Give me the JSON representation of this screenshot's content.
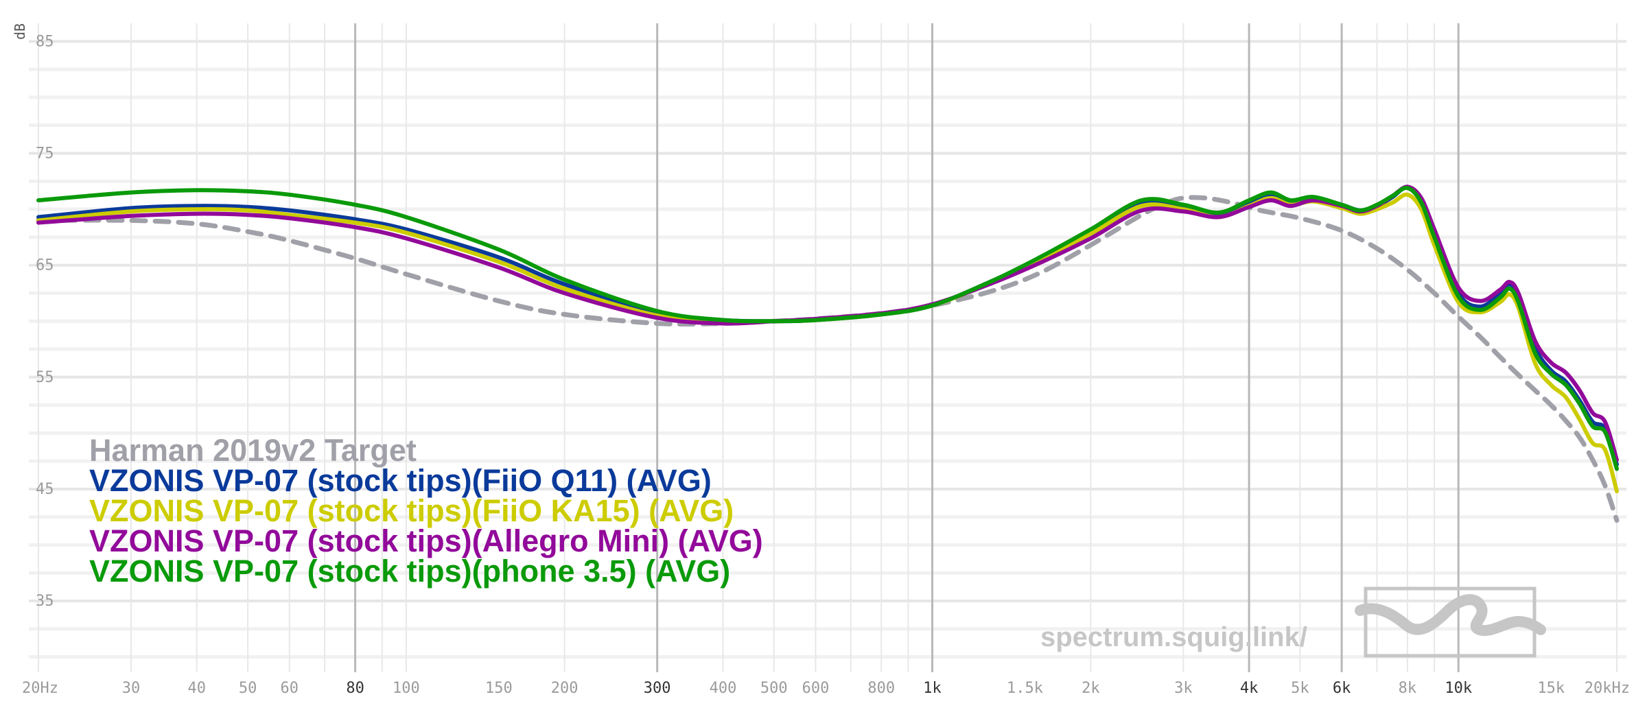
{
  "chart_data": {
    "type": "line",
    "title": "",
    "ylabel": "dB",
    "xlabel": "",
    "xscale": "log",
    "xlim": [
      20,
      20000
    ],
    "ylim": [
      29,
      86
    ],
    "y_ticks": [
      35,
      45,
      55,
      65,
      75,
      85
    ],
    "x_ticks": [
      {
        "f": 20,
        "label": "20Hz",
        "major": false
      },
      {
        "f": 30,
        "label": "30",
        "major": false
      },
      {
        "f": 40,
        "label": "40",
        "major": false
      },
      {
        "f": 50,
        "label": "50",
        "major": false
      },
      {
        "f": 60,
        "label": "60",
        "major": false
      },
      {
        "f": 80,
        "label": "80",
        "major": true
      },
      {
        "f": 100,
        "label": "100",
        "major": false
      },
      {
        "f": 150,
        "label": "150",
        "major": false
      },
      {
        "f": 200,
        "label": "200",
        "major": false
      },
      {
        "f": 300,
        "label": "300",
        "major": true
      },
      {
        "f": 400,
        "label": "400",
        "major": false
      },
      {
        "f": 500,
        "label": "500",
        "major": false
      },
      {
        "f": 600,
        "label": "600",
        "major": false
      },
      {
        "f": 800,
        "label": "800",
        "major": false
      },
      {
        "f": 1000,
        "label": "1k",
        "major": true
      },
      {
        "f": 1500,
        "label": "1.5k",
        "major": false
      },
      {
        "f": 2000,
        "label": "2k",
        "major": false
      },
      {
        "f": 3000,
        "label": "3k",
        "major": false
      },
      {
        "f": 4000,
        "label": "4k",
        "major": true
      },
      {
        "f": 5000,
        "label": "5k",
        "major": false
      },
      {
        "f": 6000,
        "label": "6k",
        "major": true
      },
      {
        "f": 8000,
        "label": "8k",
        "major": false
      },
      {
        "f": 10000,
        "label": "10k",
        "major": true
      },
      {
        "f": 15000,
        "label": "15k",
        "major": false
      },
      {
        "f": 20000,
        "label": "20kHz",
        "major": false
      }
    ],
    "series": [
      {
        "name": "Harman 2019v2 Target",
        "color": "#a0a0a8",
        "dashed": true,
        "points": [
          [
            20,
            69.0
          ],
          [
            30,
            69.0
          ],
          [
            40,
            68.7
          ],
          [
            50,
            68.0
          ],
          [
            60,
            67.2
          ],
          [
            80,
            65.6
          ],
          [
            100,
            64.2
          ],
          [
            150,
            61.8
          ],
          [
            200,
            60.6
          ],
          [
            300,
            59.8
          ],
          [
            400,
            59.8
          ],
          [
            500,
            60.0
          ],
          [
            600,
            60.2
          ],
          [
            800,
            60.7
          ],
          [
            1000,
            61.4
          ],
          [
            1300,
            62.7
          ],
          [
            1600,
            64.3
          ],
          [
            2000,
            66.8
          ],
          [
            2500,
            69.5
          ],
          [
            2800,
            70.6
          ],
          [
            3000,
            71.0
          ],
          [
            3300,
            71.0
          ],
          [
            3700,
            70.6
          ],
          [
            4200,
            69.9
          ],
          [
            5000,
            69.2
          ],
          [
            6000,
            68.1
          ],
          [
            7000,
            66.5
          ],
          [
            8000,
            64.6
          ],
          [
            9000,
            62.5
          ],
          [
            10000,
            60.4
          ],
          [
            11000,
            58.6
          ],
          [
            12000,
            56.8
          ],
          [
            13000,
            55.2
          ],
          [
            14000,
            53.8
          ],
          [
            15000,
            52.5
          ],
          [
            16000,
            51.1
          ],
          [
            17000,
            49.6
          ],
          [
            18000,
            47.6
          ],
          [
            19000,
            45.3
          ],
          [
            20000,
            42.2
          ]
        ]
      },
      {
        "name": "VZONIS VP-07 (stock tips)(FiiO Q11) (AVG)",
        "color": "#0a3a9a",
        "dashed": false,
        "points": [
          [
            20,
            69.3
          ],
          [
            30,
            70.1
          ],
          [
            40,
            70.3
          ],
          [
            50,
            70.2
          ],
          [
            60,
            69.9
          ],
          [
            80,
            69.1
          ],
          [
            100,
            68.2
          ],
          [
            150,
            65.7
          ],
          [
            200,
            63.3
          ],
          [
            300,
            60.8
          ],
          [
            400,
            60.1
          ],
          [
            500,
            60.0
          ],
          [
            600,
            60.1
          ],
          [
            800,
            60.6
          ],
          [
            1000,
            61.4
          ],
          [
            1300,
            63.6
          ],
          [
            1600,
            65.6
          ],
          [
            2000,
            68.0
          ],
          [
            2500,
            70.5
          ],
          [
            3000,
            70.2
          ],
          [
            3500,
            69.5
          ],
          [
            4000,
            70.5
          ],
          [
            4400,
            71.2
          ],
          [
            4800,
            70.6
          ],
          [
            5300,
            71.0
          ],
          [
            6000,
            70.4
          ],
          [
            6500,
            69.9
          ],
          [
            7000,
            70.3
          ],
          [
            7500,
            71.1
          ],
          [
            8000,
            72.0
          ],
          [
            8500,
            70.8
          ],
          [
            9000,
            67.9
          ],
          [
            10000,
            62.5
          ],
          [
            11000,
            61.3
          ],
          [
            12000,
            62.5
          ],
          [
            12500,
            63.3
          ],
          [
            13000,
            62.2
          ],
          [
            14000,
            57.6
          ],
          [
            15000,
            55.6
          ],
          [
            16000,
            54.6
          ],
          [
            17000,
            52.9
          ],
          [
            18000,
            51.0
          ],
          [
            19000,
            50.4
          ],
          [
            20000,
            47.2
          ]
        ]
      },
      {
        "name": "VZONIS VP-07 (stock tips)(FiiO KA15) (AVG)",
        "color": "#cccc00",
        "dashed": false,
        "points": [
          [
            20,
            69.0
          ],
          [
            30,
            69.8
          ],
          [
            40,
            70.0
          ],
          [
            50,
            69.9
          ],
          [
            60,
            69.5
          ],
          [
            80,
            68.8
          ],
          [
            100,
            67.9
          ],
          [
            150,
            65.3
          ],
          [
            200,
            62.9
          ],
          [
            300,
            60.5
          ],
          [
            400,
            59.9
          ],
          [
            500,
            60.0
          ],
          [
            600,
            60.1
          ],
          [
            800,
            60.6
          ],
          [
            1000,
            61.4
          ],
          [
            1300,
            63.5
          ],
          [
            1600,
            65.5
          ],
          [
            2000,
            67.8
          ],
          [
            2500,
            70.3
          ],
          [
            3000,
            70.0
          ],
          [
            3500,
            69.3
          ],
          [
            4000,
            70.3
          ],
          [
            4400,
            71.0
          ],
          [
            4800,
            70.4
          ],
          [
            5300,
            70.7
          ],
          [
            6000,
            70.1
          ],
          [
            6500,
            69.6
          ],
          [
            7000,
            70.0
          ],
          [
            7500,
            70.6
          ],
          [
            8000,
            71.3
          ],
          [
            8500,
            70.0
          ],
          [
            9000,
            66.8
          ],
          [
            10000,
            61.7
          ],
          [
            11000,
            60.8
          ],
          [
            12000,
            61.7
          ],
          [
            12500,
            62.4
          ],
          [
            13000,
            61.2
          ],
          [
            14000,
            56.2
          ],
          [
            15000,
            54.3
          ],
          [
            16000,
            53.2
          ],
          [
            17000,
            51.2
          ],
          [
            18000,
            49.1
          ],
          [
            19000,
            48.5
          ],
          [
            20000,
            44.8
          ]
        ]
      },
      {
        "name": "VZONIS VP-07 (stock tips)(Allegro Mini) (AVG)",
        "color": "#920a9a",
        "dashed": false,
        "points": [
          [
            20,
            68.8
          ],
          [
            30,
            69.4
          ],
          [
            40,
            69.6
          ],
          [
            50,
            69.5
          ],
          [
            60,
            69.2
          ],
          [
            80,
            68.4
          ],
          [
            100,
            67.4
          ],
          [
            150,
            64.8
          ],
          [
            200,
            62.5
          ],
          [
            300,
            60.3
          ],
          [
            400,
            59.8
          ],
          [
            500,
            60.0
          ],
          [
            600,
            60.2
          ],
          [
            800,
            60.7
          ],
          [
            1000,
            61.5
          ],
          [
            1300,
            63.4
          ],
          [
            1600,
            65.2
          ],
          [
            2000,
            67.4
          ],
          [
            2500,
            69.9
          ],
          [
            3000,
            69.8
          ],
          [
            3500,
            69.3
          ],
          [
            4000,
            70.2
          ],
          [
            4400,
            70.8
          ],
          [
            4800,
            70.3
          ],
          [
            5300,
            70.8
          ],
          [
            6000,
            70.3
          ],
          [
            6500,
            69.8
          ],
          [
            7000,
            70.3
          ],
          [
            7500,
            71.2
          ],
          [
            8000,
            72.0
          ],
          [
            8500,
            71.0
          ],
          [
            9000,
            68.2
          ],
          [
            10000,
            63.0
          ],
          [
            11000,
            61.8
          ],
          [
            12000,
            62.8
          ],
          [
            12500,
            63.5
          ],
          [
            13000,
            62.5
          ],
          [
            14000,
            58.2
          ],
          [
            15000,
            56.3
          ],
          [
            16000,
            55.4
          ],
          [
            17000,
            53.8
          ],
          [
            18000,
            51.8
          ],
          [
            19000,
            51.0
          ],
          [
            20000,
            47.6
          ]
        ]
      },
      {
        "name": "VZONIS VP-07 (stock tips)(phone 3.5) (AVG)",
        "color": "#0a9a0a",
        "dashed": false,
        "points": [
          [
            20,
            70.8
          ],
          [
            30,
            71.5
          ],
          [
            40,
            71.7
          ],
          [
            50,
            71.6
          ],
          [
            60,
            71.3
          ],
          [
            80,
            70.4
          ],
          [
            100,
            69.3
          ],
          [
            150,
            66.4
          ],
          [
            200,
            63.7
          ],
          [
            300,
            60.9
          ],
          [
            400,
            60.1
          ],
          [
            500,
            60.0
          ],
          [
            600,
            60.1
          ],
          [
            800,
            60.6
          ],
          [
            1000,
            61.4
          ],
          [
            1300,
            63.6
          ],
          [
            1600,
            65.7
          ],
          [
            2000,
            68.2
          ],
          [
            2500,
            70.8
          ],
          [
            3000,
            70.4
          ],
          [
            3500,
            69.7
          ],
          [
            4000,
            70.8
          ],
          [
            4400,
            71.5
          ],
          [
            4800,
            70.8
          ],
          [
            5300,
            71.1
          ],
          [
            6000,
            70.4
          ],
          [
            6500,
            69.9
          ],
          [
            7000,
            70.4
          ],
          [
            7500,
            71.2
          ],
          [
            8000,
            71.9
          ],
          [
            8500,
            70.6
          ],
          [
            9000,
            67.5
          ],
          [
            10000,
            62.2
          ],
          [
            11000,
            61.0
          ],
          [
            12000,
            62.1
          ],
          [
            12500,
            62.9
          ],
          [
            13000,
            61.7
          ],
          [
            14000,
            57.1
          ],
          [
            15000,
            55.3
          ],
          [
            16000,
            54.3
          ],
          [
            17000,
            52.6
          ],
          [
            18000,
            50.6
          ],
          [
            19000,
            50.1
          ],
          [
            20000,
            46.8
          ]
        ]
      }
    ],
    "legend_position": "bottom-left"
  },
  "watermark": {
    "text": "spectrum.squig.link/",
    "logo": "squiggle-logo-icon"
  }
}
